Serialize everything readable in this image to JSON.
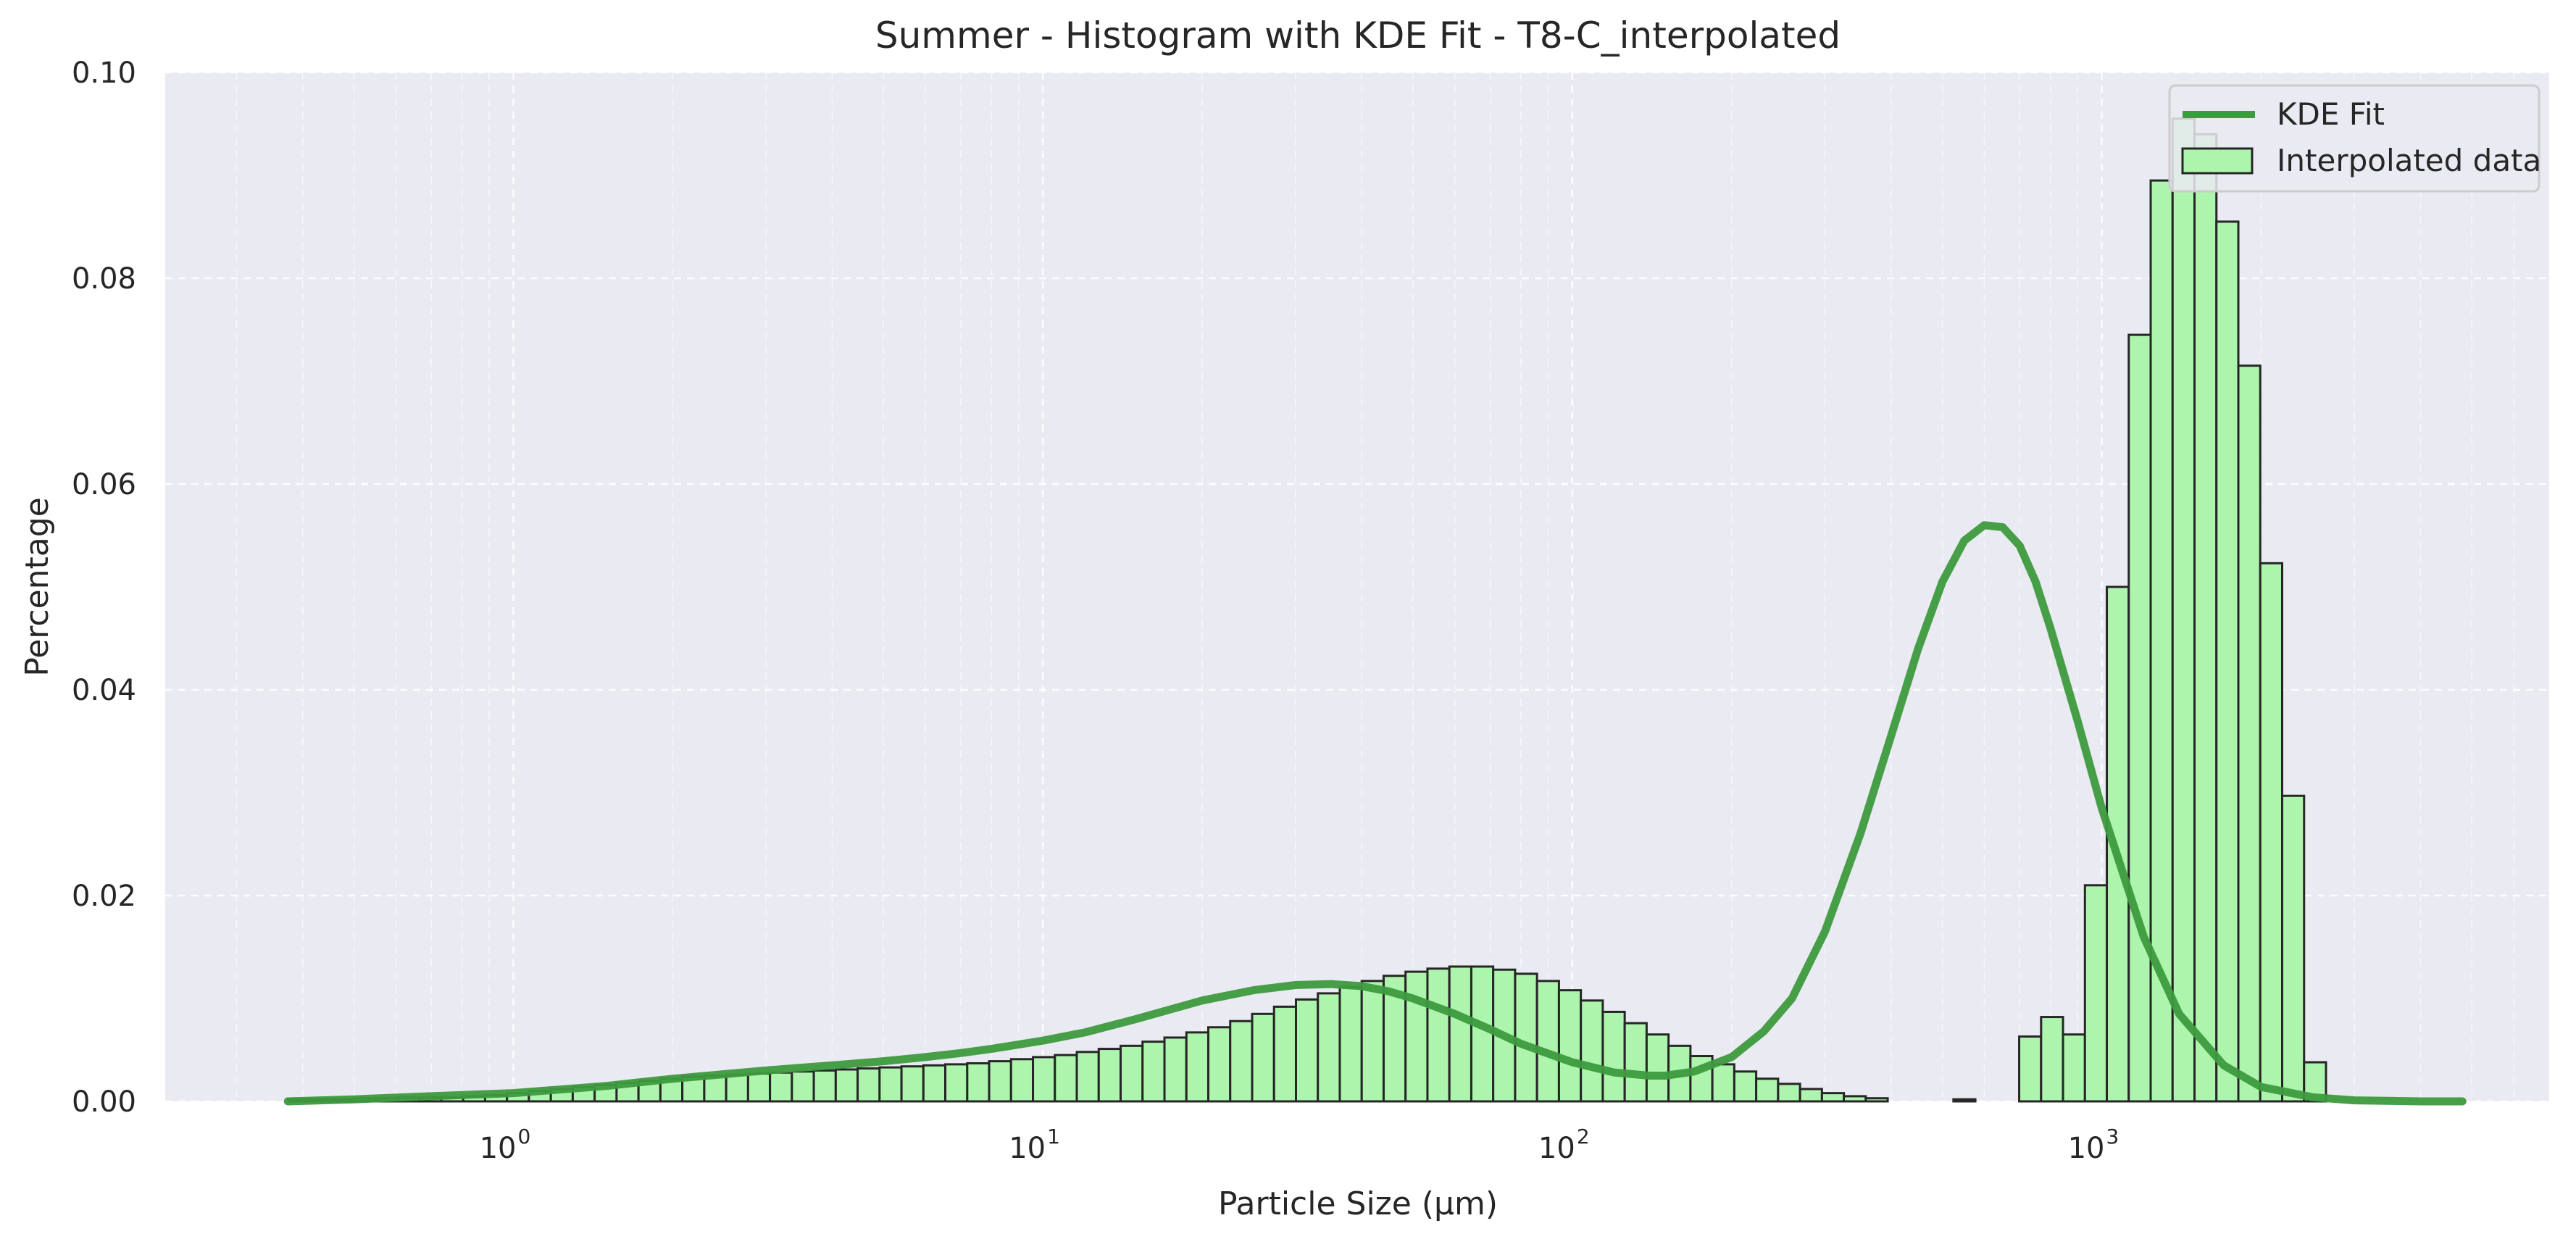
{
  "chart_data": {
    "type": "bar",
    "title": "Summer - Histogram with KDE Fit - T8-C_interpolated",
    "xlabel": "Particle Size (μm)",
    "ylabel": "Percentage",
    "x_scale": "log",
    "xlim": [
      0.22,
      7000.0
    ],
    "ylim": [
      0,
      0.1
    ],
    "y_ticks": [
      "0.00",
      "0.02",
      "0.04",
      "0.06",
      "0.08",
      "0.10"
    ],
    "x_ticks": [
      {
        "base": "10",
        "exp": "0",
        "value": 1
      },
      {
        "base": "10",
        "exp": "1",
        "value": 10
      },
      {
        "base": "10",
        "exp": "2",
        "value": 100
      },
      {
        "base": "10",
        "exp": "3",
        "value": 1000
      }
    ],
    "grid": true,
    "legend_position": "top-right",
    "colors": {
      "plot_bg": "#eaeaf2",
      "grid": "#ffffff",
      "bar_fill": "#adf5ad",
      "bar_edge": "#262626",
      "kde_line": "#3d9a3d"
    },
    "series": [
      {
        "name": "Interpolated data",
        "kind": "histogram",
        "log_bin_start": 0.375,
        "log_bin_ratio": 1.1,
        "values": [
          0.0002,
          0.0002,
          0.0002,
          0.0003,
          0.0003,
          0.0004,
          0.0004,
          0.0004,
          0.0005,
          0.0006,
          0.0008,
          0.001,
          0.0012,
          0.0014,
          0.0016,
          0.0018,
          0.002,
          0.0022,
          0.0024,
          0.0025,
          0.0026,
          0.0027,
          0.0028,
          0.0029,
          0.003,
          0.0031,
          0.0032,
          0.0033,
          0.0034,
          0.0035,
          0.0036,
          0.0037,
          0.0039,
          0.0041,
          0.0043,
          0.0045,
          0.0048,
          0.0051,
          0.0054,
          0.0058,
          0.0062,
          0.0067,
          0.0072,
          0.0078,
          0.0085,
          0.0092,
          0.0099,
          0.0105,
          0.0111,
          0.0117,
          0.0122,
          0.0126,
          0.0129,
          0.0131,
          0.0131,
          0.0128,
          0.0124,
          0.0117,
          0.0108,
          0.0098,
          0.0087,
          0.0076,
          0.0065,
          0.0054,
          0.0044,
          0.0036,
          0.0029,
          0.0022,
          0.0017,
          0.0012,
          0.0008,
          0.0005,
          0.0003,
          0.0,
          0.0,
          0.0,
          0.0002,
          0.0,
          0.0,
          0.0063,
          0.0082,
          0.0065,
          0.021,
          0.05,
          0.0745,
          0.0895,
          0.0955,
          0.094,
          0.0855,
          0.0715,
          0.0523,
          0.0297,
          0.0038
        ]
      },
      {
        "name": "KDE Fit",
        "kind": "line",
        "x": [
          0.375,
          0.5,
          0.7,
          1.0,
          1.5,
          2.0,
          3.0,
          4.0,
          5.0,
          6.0,
          7.0,
          8.0,
          10.0,
          12.0,
          15.0,
          20.0,
          25.0,
          30.0,
          35.0,
          40.0,
          45.0,
          50.0,
          60.0,
          70.0,
          80.0,
          100.0,
          120.0,
          140.0,
          150.0,
          170.0,
          200.0,
          230.0,
          260.0,
          300.0,
          350.0,
          400.0,
          450.0,
          500.0,
          550.0,
          600.0,
          650.0,
          700.0,
          750.0,
          800.0,
          900.0,
          1000.0,
          1200.0,
          1400.0,
          1700.0,
          2000.0,
          2500.0,
          3000.0,
          4000.0,
          4800.0
        ],
        "y": [
          0.0,
          0.0002,
          0.0005,
          0.0008,
          0.0015,
          0.0022,
          0.003,
          0.0035,
          0.0039,
          0.0043,
          0.0047,
          0.0051,
          0.0059,
          0.0067,
          0.008,
          0.0098,
          0.0108,
          0.0113,
          0.0114,
          0.0112,
          0.0107,
          0.01,
          0.0085,
          0.007,
          0.0056,
          0.0038,
          0.0028,
          0.0025,
          0.0025,
          0.0029,
          0.0043,
          0.0068,
          0.01,
          0.0165,
          0.026,
          0.0355,
          0.044,
          0.0505,
          0.0545,
          0.056,
          0.0558,
          0.054,
          0.0505,
          0.046,
          0.037,
          0.0285,
          0.016,
          0.0085,
          0.0035,
          0.0014,
          0.0004,
          0.0001,
          0.0,
          0.0
        ]
      }
    ]
  }
}
